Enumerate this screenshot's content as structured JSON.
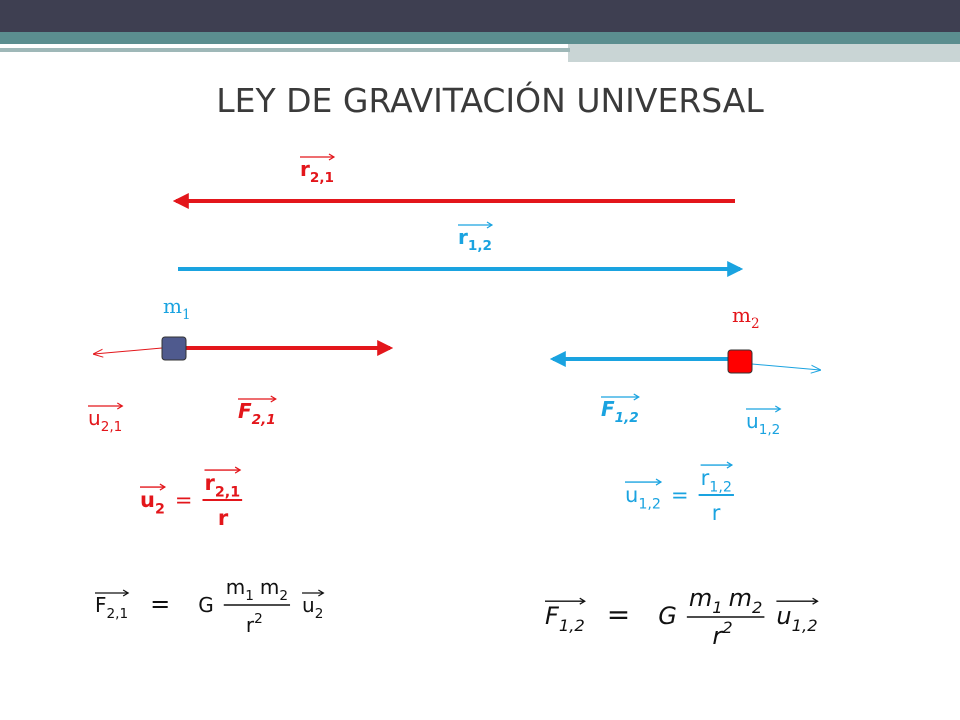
{
  "title": "LEY DE GRAVITACIÓN UNIVERSAL",
  "masses": [
    {
      "symbol": "m",
      "sub": "1"
    },
    {
      "symbol": "m",
      "sub": "2"
    }
  ],
  "vector_labels": [
    {
      "symbol": "r",
      "sub": "2,1"
    },
    {
      "symbol": "r",
      "sub": "1,2"
    },
    {
      "symbol": "u",
      "sub": "2,1"
    },
    {
      "symbol": "F",
      "sub": "2,1"
    },
    {
      "symbol": "F",
      "sub": "1,2"
    },
    {
      "symbol": "u",
      "sub": "1,2"
    }
  ],
  "unit_formulas": [
    {
      "lhs": {
        "symbol": "u",
        "sub": "2"
      },
      "eq": "=",
      "numerator": {
        "symbol": "r",
        "sub": "2,1"
      },
      "denominator": {
        "symbol": "r"
      }
    },
    {
      "lhs": {
        "symbol": "u",
        "sub": "1,2"
      },
      "eq": "=",
      "numerator": {
        "symbol": "r",
        "sub": "1,2"
      },
      "denominator": {
        "symbol": "r"
      }
    }
  ],
  "force_formulas": [
    {
      "lhs": {
        "symbol": "F",
        "sub": "2,1"
      },
      "eq": "=",
      "constant": "G",
      "numerator": [
        {
          "symbol": "m",
          "sub": "1"
        },
        {
          "symbol": "m",
          "sub": "2"
        }
      ],
      "denominator": {
        "symbol": "r",
        "sup": "2"
      },
      "unit": {
        "symbol": "u",
        "sub": "2"
      }
    },
    {
      "lhs": {
        "symbol": "F",
        "sub": "1,2"
      },
      "eq": "=",
      "constant": "G",
      "numerator": [
        {
          "symbol": "m",
          "sub": "1"
        },
        {
          "symbol": "m",
          "sub": "2"
        }
      ],
      "denominator": {
        "symbol": "r",
        "sup": "2"
      },
      "unit": {
        "symbol": "u",
        "sub": "1,2"
      }
    }
  ]
}
